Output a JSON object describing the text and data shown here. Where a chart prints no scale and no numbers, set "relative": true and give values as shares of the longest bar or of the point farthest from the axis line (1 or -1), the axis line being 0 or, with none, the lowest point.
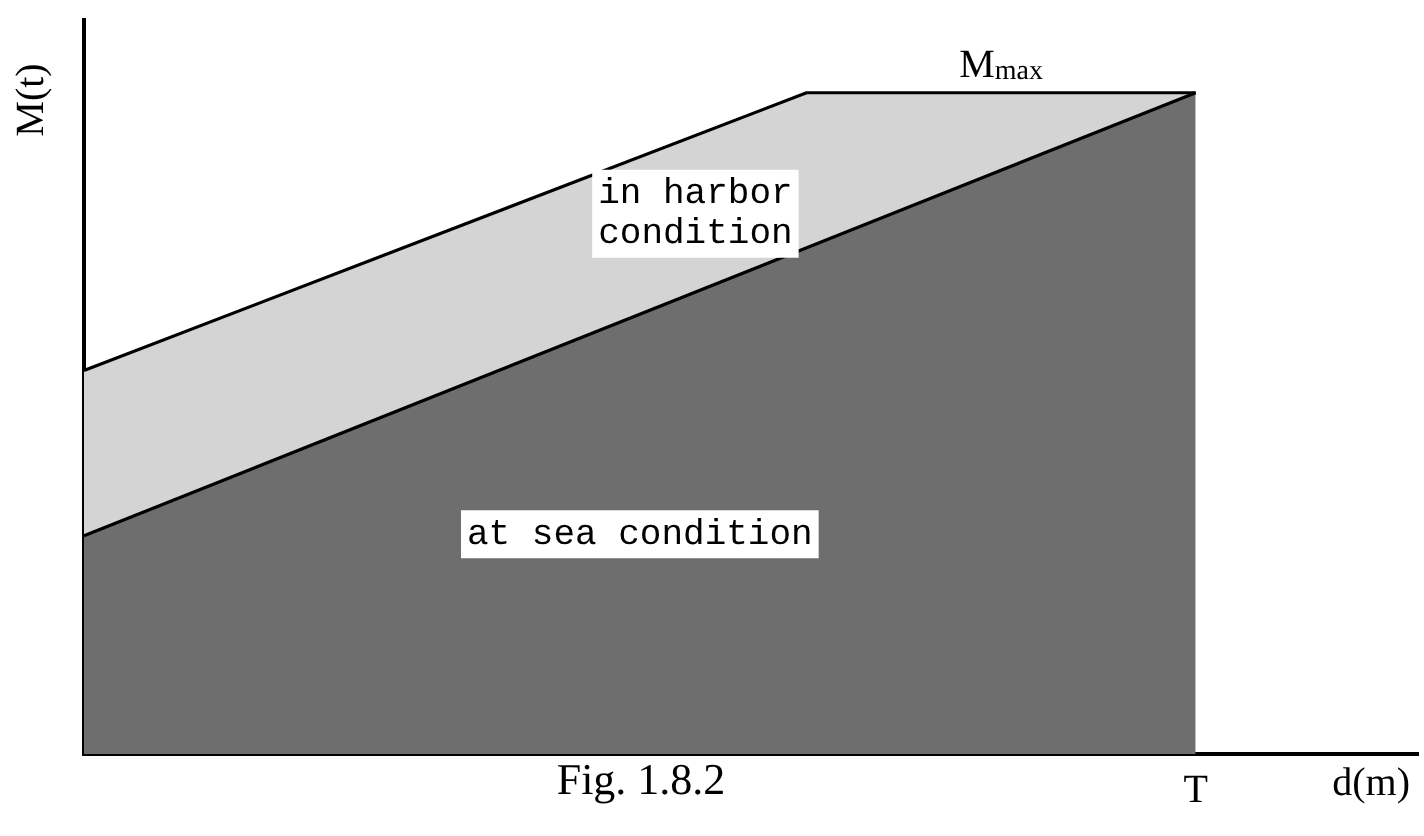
{
  "chart_data": {
    "type": "area",
    "relative": true,
    "title": "Fig. 1.8.2",
    "xlabel": "d(m)",
    "ylabel": "M(t)",
    "legend": false,
    "categories": [
      null,
      null,
      null,
      null,
      null,
      null,
      null,
      null,
      null,
      null,
      null,
      null,
      null,
      null,
      null,
      null,
      null,
      null,
      null,
      null,
      null,
      null,
      null,
      null,
      null
    ],
    "series": [
      {
        "name": "at sea condition",
        "color": "#6e6e6e",
        "values": [
          0.33,
          null,
          null,
          null,
          null,
          null,
          null,
          null,
          null,
          null,
          null,
          null,
          null,
          null,
          null,
          null,
          null,
          null,
          null,
          null,
          1,
          null,
          null,
          null,
          null
        ]
      },
      {
        "name": "in harbor condition",
        "color": "#d4d4d4",
        "values": [
          0.58,
          null,
          null,
          null,
          null,
          null,
          null,
          null,
          null,
          null,
          null,
          null,
          null,
          1,
          null,
          null,
          null,
          null,
          null,
          null,
          1,
          null,
          null,
          null,
          null
        ]
      }
    ],
    "annotations": [
      "M$_{max}$",
      "T"
    ]
  }
}
